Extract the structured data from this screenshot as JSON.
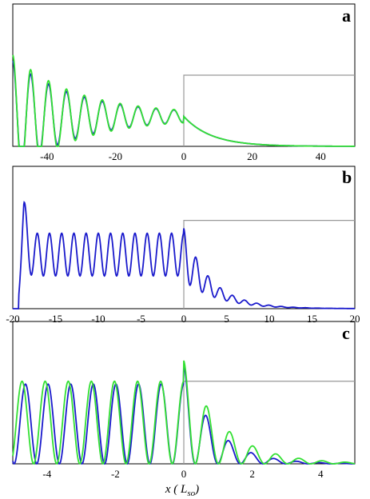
{
  "chart_data": [
    {
      "panel": "a",
      "type": "line",
      "xlim": [
        -50,
        50
      ],
      "xticks": [
        "-40",
        "-20",
        "0",
        "20",
        "40"
      ],
      "step_level": 0.5,
      "series": [
        {
          "color": "#1a1acc",
          "kind": "decay-osc",
          "A": 0.46,
          "base": 0.21,
          "L": 8,
          "k": 1.2,
          "d": 0.055,
          "amp": 0.9
        },
        {
          "color": "#33e033",
          "kind": "decay-osc",
          "A": 0.46,
          "base": 0.21,
          "L": 8,
          "k": 1.2,
          "d": 0.055,
          "amp": 1.0
        }
      ]
    },
    {
      "panel": "b",
      "type": "line",
      "xlim": [
        -20,
        20
      ],
      "xticks": [
        "-20",
        "-15",
        "-10",
        "-5",
        "0",
        "5",
        "10",
        "15",
        "20"
      ],
      "step_level": 0.62,
      "series": [
        {
          "color": "#1a1acc",
          "kind": "flat-osc",
          "A": 0.67,
          "base": 0.38,
          "L": 2.8,
          "k": 4.4,
          "left": -19.3
        }
      ]
    },
    {
      "panel": "c",
      "type": "line",
      "xlim": [
        -5,
        5
      ],
      "xticks": [
        "-4",
        "-2",
        "0",
        "2",
        "4"
      ],
      "xlabel": "x ( L",
      "xlabel_sub": "so",
      "xlabel_end": ")",
      "step_level": 0.58,
      "series": [
        {
          "color": "#1a1acc",
          "kind": "full-osc",
          "A": 0.56,
          "L": 0.9,
          "k": 9.5
        },
        {
          "color": "#33e033",
          "kind": "full-osc",
          "A": 0.58,
          "L": 1.15,
          "k": 9.3
        }
      ]
    }
  ],
  "labels": {
    "a": "a",
    "b": "b",
    "c": "c"
  }
}
